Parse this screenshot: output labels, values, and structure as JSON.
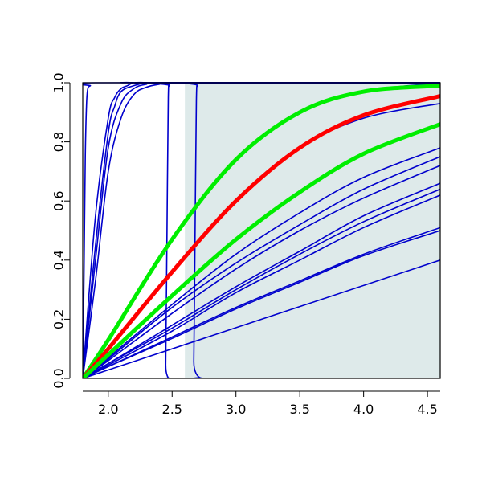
{
  "chart_data": {
    "type": "line",
    "title": "",
    "xlabel": "",
    "ylabel": "",
    "xlim": [
      1.8,
      4.6
    ],
    "ylim": [
      0,
      1
    ],
    "x_ticks": [
      "2.0",
      "2.5",
      "3.0",
      "3.5",
      "4.0",
      "4.5"
    ],
    "y_ticks": [
      "0.0",
      "0.2",
      "0.4",
      "0.6",
      "0.8",
      "1.0"
    ],
    "x_tick_values": [
      2.0,
      2.5,
      3.0,
      3.5,
      4.0,
      4.5
    ],
    "y_tick_values": [
      0.0,
      0.2,
      0.4,
      0.6,
      0.8,
      1.0
    ],
    "grid": false,
    "legend": "none",
    "shaded_region": {
      "x": [
        2.6,
        4.6
      ],
      "color": "#deeaea"
    },
    "colors": {
      "blue": "#0000cc",
      "red": "#ff0000",
      "green": "#00ee00"
    },
    "series": [
      {
        "color": "blue",
        "width": 1.6,
        "x": [
          1.8,
          1.81,
          1.82,
          1.83,
          1.84,
          1.86,
          1.9,
          4.6
        ],
        "y": [
          0,
          0.35,
          0.75,
          0.93,
          0.98,
          0.99,
          1.0,
          1.0
        ]
      },
      {
        "color": "blue",
        "width": 1.6,
        "x": [
          1.8,
          1.9,
          2.0,
          2.05,
          2.1,
          2.15,
          2.2,
          2.3,
          4.6
        ],
        "y": [
          0,
          0.55,
          0.88,
          0.95,
          0.98,
          0.99,
          1.0,
          1.0,
          1.0
        ]
      },
      {
        "color": "blue",
        "width": 1.6,
        "x": [
          1.8,
          1.9,
          2.0,
          2.05,
          2.1,
          2.2,
          2.3,
          2.4,
          4.6
        ],
        "y": [
          0,
          0.45,
          0.83,
          0.92,
          0.97,
          0.99,
          1.0,
          1.0,
          1.0
        ]
      },
      {
        "color": "blue",
        "width": 1.6,
        "x": [
          1.8,
          1.9,
          2.0,
          2.1,
          2.2,
          2.3,
          2.4,
          4.6
        ],
        "y": [
          0,
          0.4,
          0.78,
          0.93,
          0.98,
          0.995,
          1.0,
          1.0
        ]
      },
      {
        "color": "blue",
        "width": 1.6,
        "x": [
          1.8,
          1.9,
          2.0,
          2.1,
          2.2,
          2.3,
          2.4,
          2.5,
          4.6
        ],
        "y": [
          0,
          0.33,
          0.7,
          0.88,
          0.96,
          0.985,
          0.995,
          1.0,
          1.0
        ]
      },
      {
        "color": "blue",
        "width": 1.6,
        "x": [
          1.8,
          2.44,
          2.45,
          2.46,
          2.47,
          2.48,
          2.5,
          4.6
        ],
        "y": [
          0,
          0.0,
          0.05,
          0.5,
          0.95,
          0.99,
          1.0,
          1.0
        ]
      },
      {
        "color": "blue",
        "width": 1.6,
        "x": [
          1.8,
          2.66,
          2.67,
          2.68,
          2.69,
          2.7,
          2.72,
          4.6
        ],
        "y": [
          0,
          0.0,
          0.06,
          0.5,
          0.94,
          0.99,
          1.0,
          1.0
        ]
      },
      {
        "color": "blue",
        "width": 1.6,
        "x": [
          1.8,
          2.0,
          2.5,
          3.0,
          3.5,
          4.0,
          4.6
        ],
        "y": [
          0,
          0.13,
          0.47,
          0.74,
          0.9,
          0.97,
          1.0
        ]
      },
      {
        "color": "blue",
        "width": 1.6,
        "x": [
          1.8,
          2.0,
          2.5,
          3.0,
          3.5,
          4.0,
          4.6
        ],
        "y": [
          0,
          0.1,
          0.36,
          0.6,
          0.78,
          0.88,
          0.93
        ]
      },
      {
        "color": "blue",
        "width": 1.6,
        "x": [
          1.8,
          2.0,
          2.5,
          3.0,
          3.5,
          4.0,
          4.6
        ],
        "y": [
          0,
          0.08,
          0.28,
          0.47,
          0.63,
          0.76,
          0.86
        ]
      },
      {
        "color": "blue",
        "width": 1.6,
        "x": [
          1.8,
          2.0,
          2.5,
          3.0,
          3.5,
          4.0,
          4.6
        ],
        "y": [
          0,
          0.07,
          0.25,
          0.42,
          0.56,
          0.68,
          0.78
        ]
      },
      {
        "color": "blue",
        "width": 1.6,
        "x": [
          1.8,
          2.0,
          2.5,
          3.0,
          3.5,
          4.0,
          4.6
        ],
        "y": [
          0,
          0.065,
          0.24,
          0.39,
          0.52,
          0.64,
          0.75
        ]
      },
      {
        "color": "blue",
        "width": 1.6,
        "x": [
          1.8,
          2.0,
          2.5,
          3.0,
          3.5,
          4.0,
          4.6
        ],
        "y": [
          0,
          0.06,
          0.22,
          0.37,
          0.5,
          0.61,
          0.72
        ]
      },
      {
        "color": "blue",
        "width": 1.6,
        "x": [
          1.8,
          2.0,
          2.5,
          3.0,
          3.5,
          4.0,
          4.6
        ],
        "y": [
          0,
          0.05,
          0.18,
          0.31,
          0.43,
          0.55,
          0.66
        ]
      },
      {
        "color": "blue",
        "width": 1.6,
        "x": [
          1.8,
          2.0,
          2.5,
          3.0,
          3.5,
          4.0,
          4.6
        ],
        "y": [
          0,
          0.05,
          0.17,
          0.3,
          0.42,
          0.53,
          0.64
        ]
      },
      {
        "color": "blue",
        "width": 1.6,
        "x": [
          1.8,
          2.0,
          2.5,
          3.0,
          3.5,
          4.0,
          4.6
        ],
        "y": [
          0,
          0.045,
          0.16,
          0.29,
          0.4,
          0.51,
          0.62
        ]
      },
      {
        "color": "blue",
        "width": 1.6,
        "x": [
          1.8,
          2.0,
          2.5,
          3.0,
          3.5,
          4.0,
          4.6
        ],
        "y": [
          0,
          0.04,
          0.14,
          0.24,
          0.33,
          0.42,
          0.51
        ]
      },
      {
        "color": "blue",
        "width": 1.6,
        "x": [
          1.8,
          2.0,
          2.5,
          3.0,
          3.5,
          4.0,
          4.6
        ],
        "y": [
          0,
          0.04,
          0.135,
          0.235,
          0.325,
          0.415,
          0.5
        ]
      },
      {
        "color": "blue",
        "width": 1.6,
        "x": [
          1.8,
          4.6
        ],
        "y": [
          0,
          0.4
        ]
      },
      {
        "color": "green",
        "width": 5,
        "x": [
          1.8,
          2.0,
          2.5,
          3.0,
          3.5,
          4.0,
          4.6
        ],
        "y": [
          0,
          0.13,
          0.47,
          0.74,
          0.9,
          0.97,
          0.99
        ]
      },
      {
        "color": "red",
        "width": 5,
        "x": [
          1.8,
          2.0,
          2.5,
          3.0,
          3.5,
          4.0,
          4.6
        ],
        "y": [
          0,
          0.1,
          0.36,
          0.6,
          0.78,
          0.89,
          0.955
        ]
      },
      {
        "color": "green",
        "width": 5,
        "x": [
          1.8,
          2.0,
          2.5,
          3.0,
          3.5,
          4.0,
          4.6
        ],
        "y": [
          0,
          0.08,
          0.28,
          0.47,
          0.63,
          0.76,
          0.86
        ]
      }
    ]
  }
}
